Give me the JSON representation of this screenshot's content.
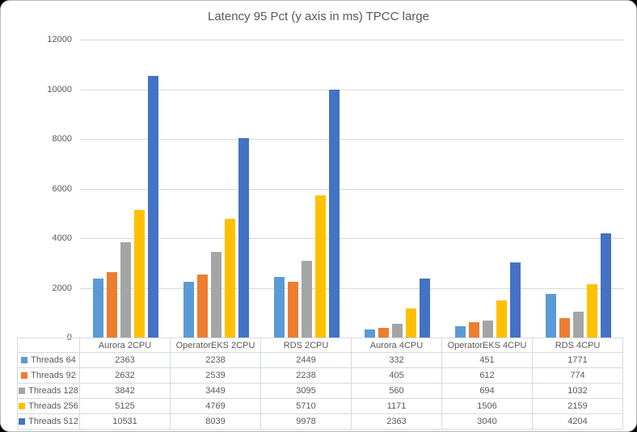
{
  "title": "Latency 95 Pct (y axis in ms) TPCC large",
  "colors": {
    "grid": "#d9d9d9",
    "axis_text": "#595959",
    "table_border": "#d5dae2",
    "table_text": "#595959",
    "background": "#ffffff"
  },
  "chart_data": {
    "type": "bar",
    "title": "Latency 95 Pct (y axis in ms) TPCC large",
    "categories": [
      "Aurora 2CPU",
      "OperatorEKS 2CPU",
      "RDS 2CPU",
      "Aurora 4CPU",
      "OperatorEKS 4CPU",
      "RDS 4CPU"
    ],
    "series": [
      {
        "name": "Threads 64",
        "color": "#5B9BD5",
        "values": [
          2363,
          2238,
          2449,
          332,
          451,
          1771
        ]
      },
      {
        "name": "Threads 92",
        "color": "#ED7D31",
        "values": [
          2632,
          2539,
          2238,
          405,
          612,
          774
        ]
      },
      {
        "name": "Threads 128",
        "color": "#A5A5A5",
        "values": [
          3842,
          3449,
          3095,
          560,
          694,
          1032
        ]
      },
      {
        "name": "Threads 256",
        "color": "#FFC000",
        "values": [
          5125,
          4769,
          5710,
          1171,
          1506,
          2159
        ]
      },
      {
        "name": "Threads 512",
        "color": "#4472C4",
        "values": [
          10531,
          8039,
          9978,
          2363,
          3040,
          4204
        ]
      }
    ],
    "xlabel": "",
    "ylabel": "",
    "ylim": [
      0,
      12000
    ],
    "yticks": [
      0,
      2000,
      4000,
      6000,
      8000,
      10000,
      12000
    ],
    "grid": true,
    "legend_position": "data-table-left"
  }
}
